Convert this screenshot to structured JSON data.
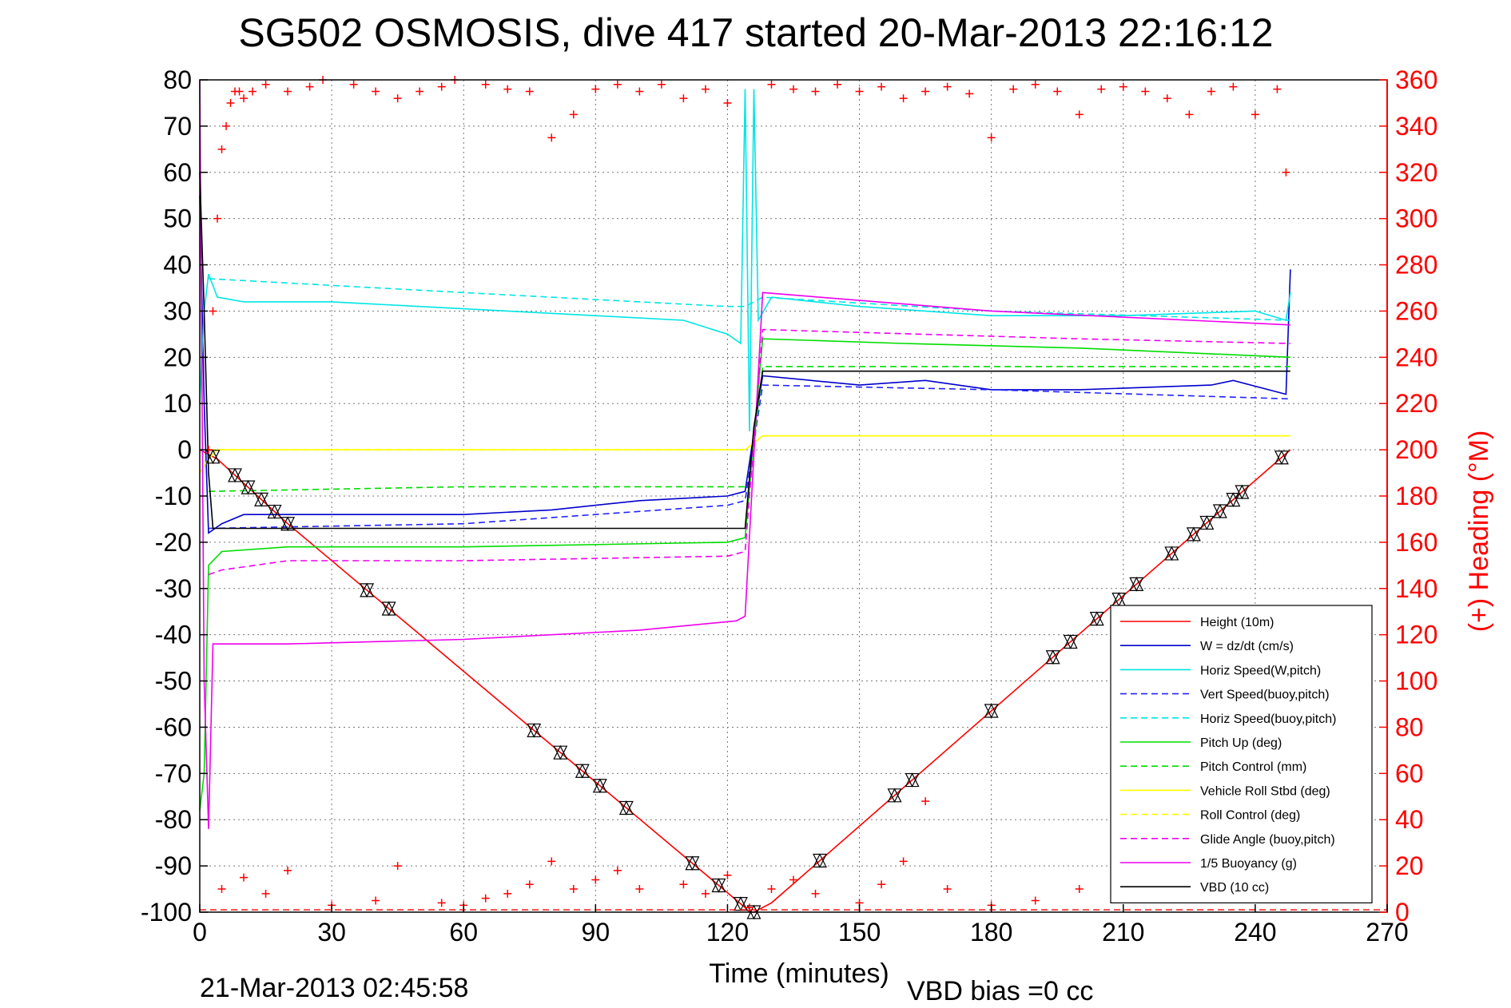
{
  "chart_data": {
    "type": "line",
    "title": "SG502 OSMOSIS, dive 417 started 20-Mar-2013 22:16:12",
    "xlabel": "Time (minutes)",
    "ylabel_right": "(+) Heading (°M)",
    "footer_left": "21-Mar-2013 02:45:58",
    "footer_right": "VBD bias =0 cc",
    "xlim": [
      0,
      270
    ],
    "ylim": [
      -100,
      80
    ],
    "ylim_right": [
      0,
      360
    ],
    "x_ticks": [
      0,
      30,
      60,
      90,
      120,
      150,
      180,
      210,
      240,
      270
    ],
    "y_ticks": [
      -100,
      -90,
      -80,
      -70,
      -60,
      -50,
      -40,
      -30,
      -20,
      -10,
      0,
      10,
      20,
      30,
      40,
      50,
      60,
      70,
      80
    ],
    "y_ticks_right": [
      0,
      20,
      40,
      60,
      80,
      100,
      120,
      140,
      160,
      180,
      200,
      220,
      240,
      260,
      280,
      300,
      320,
      340,
      360
    ],
    "grid": true,
    "legend_position": "bottom-right",
    "colors": {
      "red": "#ff0000",
      "blue": "#0000cc",
      "cyan": "#00e5e5",
      "green": "#00dd00",
      "yellow": "#ffff00",
      "magenta": "#ee00ee",
      "black": "#000000"
    },
    "series": [
      {
        "name": "Height (10m)",
        "color": "#ff0000",
        "style": "solid",
        "x": [
          0,
          2,
          4,
          20,
          124,
          125,
          126,
          130,
          248
        ],
        "y": [
          0,
          -1,
          -2,
          -16,
          -99,
          -100,
          -100,
          -98,
          0
        ]
      },
      {
        "name": "W = dz/dt (cm/s)",
        "color": "#0000cc",
        "style": "solid",
        "x": [
          0,
          1,
          2,
          5,
          10,
          20,
          40,
          60,
          80,
          100,
          120,
          124,
          127,
          128,
          150,
          165,
          180,
          200,
          230,
          235,
          247,
          248
        ],
        "y": [
          55,
          10,
          -18,
          -16,
          -14,
          -14,
          -14,
          -14,
          -13,
          -11,
          -10,
          -9,
          10,
          16,
          14,
          15,
          13,
          13,
          14,
          15,
          12,
          39
        ]
      },
      {
        "name": "Horiz Speed(W,pitch)",
        "color": "#00e5e5",
        "style": "solid",
        "x": [
          0,
          1,
          2,
          4,
          10,
          30,
          50,
          70,
          90,
          110,
          120,
          123,
          124,
          125,
          126,
          127,
          130,
          150,
          180,
          210,
          240,
          247,
          248
        ],
        "y": [
          10,
          30,
          38,
          33,
          32,
          32,
          31,
          30,
          29,
          28,
          25,
          23,
          78,
          4,
          78,
          28,
          33,
          31,
          29,
          29,
          30,
          28,
          34
        ]
      },
      {
        "name": "Vert Speed(buoy,pitch)",
        "color": "#2222ff",
        "style": "dashed",
        "x": [
          2,
          60,
          120,
          124,
          128,
          180,
          248
        ],
        "y": [
          -17,
          -16,
          -12,
          -11,
          14,
          13,
          11
        ]
      },
      {
        "name": "Horiz Speed(buoy,pitch)",
        "color": "#00e5e5",
        "style": "dashed",
        "x": [
          2,
          60,
          120,
          124,
          128,
          180,
          248
        ],
        "y": [
          37,
          34,
          31,
          31,
          33,
          30,
          28
        ]
      },
      {
        "name": "Pitch Up (deg)",
        "color": "#00dd00",
        "style": "solid",
        "x": [
          0,
          1,
          2,
          5,
          20,
          60,
          120,
          124,
          128,
          160,
          200,
          248
        ],
        "y": [
          -78,
          -70,
          -25,
          -22,
          -21,
          -21,
          -20,
          -19,
          24,
          23,
          22,
          20
        ]
      },
      {
        "name": "Pitch Control (mm)",
        "color": "#00dd00",
        "style": "dashed",
        "x": [
          2,
          60,
          124,
          125,
          128,
          200,
          248
        ],
        "y": [
          -9,
          -8,
          -8,
          -8,
          18,
          18,
          18
        ]
      },
      {
        "name": "Vehicle Roll Stbd (deg)",
        "color": "#ffff00",
        "style": "solid",
        "x": [
          0,
          2,
          4,
          10,
          120,
          124,
          128,
          248
        ],
        "y": [
          -5,
          -2,
          0,
          0,
          0,
          0,
          3,
          3
        ]
      },
      {
        "name": "Roll Control (deg)",
        "color": "#ffff00",
        "style": "dashed",
        "x": [
          2,
          124,
          128,
          248
        ],
        "y": [
          0,
          0,
          3,
          3
        ]
      },
      {
        "name": "Glide Angle (buoy,pitch)",
        "color": "#ee00ee",
        "style": "dashed",
        "x": [
          2,
          5,
          20,
          60,
          120,
          124,
          128,
          200,
          248
        ],
        "y": [
          -27,
          -26,
          -24,
          -24,
          -23,
          -22,
          26,
          24,
          23
        ]
      },
      {
        "name": "1/5 Buoyancy (g)",
        "color": "#ee00ee",
        "style": "solid",
        "x": [
          0,
          1,
          2,
          3,
          20,
          60,
          100,
          122,
          124,
          128,
          180,
          248
        ],
        "y": [
          80,
          -50,
          -82,
          -42,
          -42,
          -41,
          -39,
          -37,
          -36,
          34,
          30,
          27
        ]
      },
      {
        "name": "VBD (10 cc)",
        "color": "#000000",
        "style": "solid",
        "x": [
          0,
          1,
          2,
          3,
          124,
          126,
          128,
          248
        ],
        "y": [
          60,
          30,
          -5,
          -17,
          -17,
          5,
          17,
          17
        ]
      }
    ],
    "heading": {
      "axis": "right",
      "marker": "+",
      "color": "#ff0000",
      "x": [
        2,
        3,
        4,
        5,
        6,
        7,
        8,
        9,
        10,
        12,
        15,
        20,
        25,
        28,
        35,
        40,
        45,
        50,
        55,
        58,
        65,
        70,
        75,
        80,
        85,
        90,
        95,
        100,
        105,
        110,
        115,
        120,
        130,
        135,
        140,
        145,
        150,
        155,
        160,
        165,
        170,
        175,
        180,
        185,
        190,
        195,
        200,
        205,
        210,
        215,
        220,
        225,
        230,
        235,
        240,
        245,
        247,
        5,
        10,
        15,
        20,
        30,
        40,
        45,
        55,
        60,
        65,
        70,
        75,
        80,
        85,
        90,
        95,
        100,
        110,
        115,
        120,
        125,
        130,
        135,
        140,
        150,
        155,
        160,
        165,
        170,
        180,
        190,
        200,
        210,
        220,
        230,
        240
      ],
      "y": [
        200,
        260,
        300,
        330,
        340,
        350,
        355,
        355,
        352,
        355,
        358,
        355,
        357,
        360,
        358,
        355,
        352,
        355,
        357,
        360,
        358,
        356,
        355,
        335,
        345,
        356,
        358,
        355,
        358,
        352,
        356,
        350,
        358,
        356,
        355,
        358,
        355,
        357,
        352,
        355,
        357,
        354,
        335,
        356,
        358,
        355,
        345,
        356,
        357,
        355,
        352,
        345,
        355,
        357,
        345,
        356,
        320,
        10,
        15,
        8,
        18,
        3,
        5,
        20,
        4,
        3,
        6,
        8,
        12,
        22,
        10,
        14,
        18,
        10,
        12,
        8,
        16,
        2,
        10,
        14,
        8,
        4,
        12,
        22,
        48,
        10,
        3,
        5,
        10,
        6,
        18,
        12,
        20
      ]
    }
  }
}
